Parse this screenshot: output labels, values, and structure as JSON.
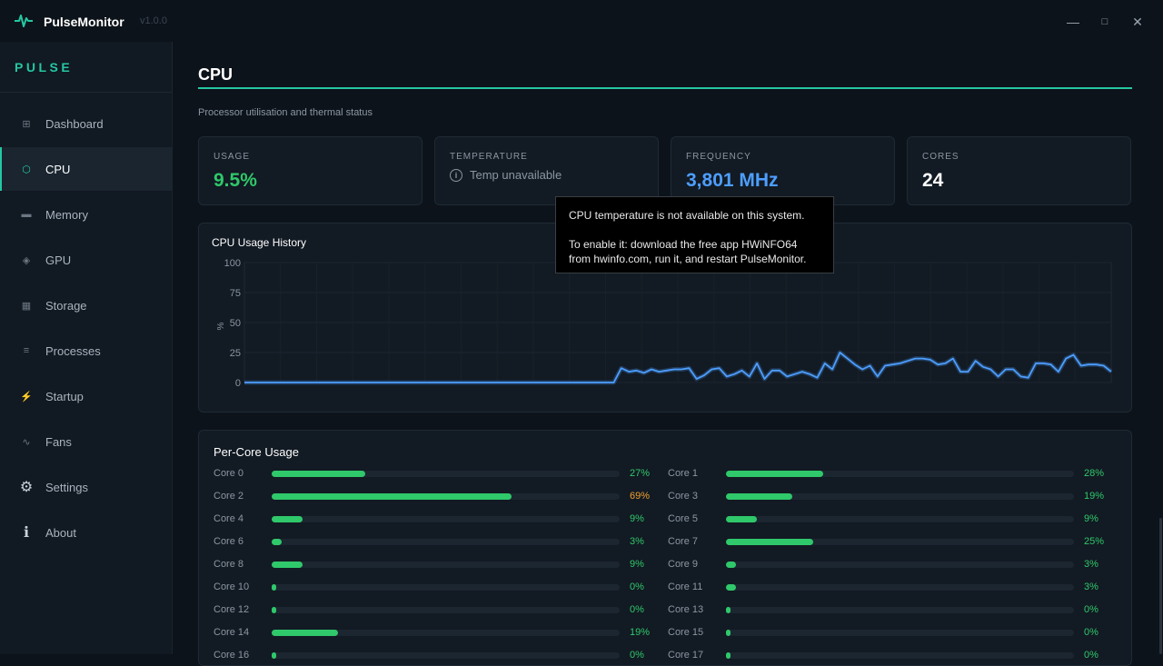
{
  "app": {
    "name": "PulseMonitor",
    "version": "v1.0.0",
    "brand": "PULSE"
  },
  "window": {
    "minimize": "—",
    "maximize": "□",
    "close": "✕"
  },
  "sidebar": {
    "items": [
      {
        "label": "Dashboard",
        "icon": "grid-icon",
        "glyph": "⊞",
        "active": false
      },
      {
        "label": "CPU",
        "icon": "cpu-icon",
        "glyph": "⬡",
        "active": true
      },
      {
        "label": "Memory",
        "icon": "memory-icon",
        "glyph": "▬",
        "active": false
      },
      {
        "label": "GPU",
        "icon": "gpu-icon",
        "glyph": "◈",
        "active": false
      },
      {
        "label": "Storage",
        "icon": "storage-icon",
        "glyph": "▦",
        "active": false
      },
      {
        "label": "Processes",
        "icon": "list-icon",
        "glyph": "≡",
        "active": false
      },
      {
        "label": "Startup",
        "icon": "bolt-icon",
        "glyph": "⚡",
        "active": false
      },
      {
        "label": "Fans",
        "icon": "fan-icon",
        "glyph": "∿",
        "active": false
      },
      {
        "label": "Settings",
        "icon": "gear-icon",
        "glyph": "⚙",
        "active": false
      },
      {
        "label": "About",
        "icon": "info-icon",
        "glyph": "ℹ",
        "active": false
      }
    ]
  },
  "page": {
    "title": "CPU",
    "subtitle": "Processor utilisation and thermal status"
  },
  "cards": [
    {
      "label": "USAGE",
      "value": "9.5%",
      "color": "#2fc86a"
    },
    {
      "label": "TEMPERATURE",
      "value": "Temp unavailable",
      "color": "#8b97a3"
    },
    {
      "label": "FREQUENCY",
      "value": "3,801 MHz",
      "color": "#4d9eff"
    },
    {
      "label": "CORES",
      "value": "24",
      "color": "#ffffff"
    }
  ],
  "history": {
    "title": "CPU Usage History",
    "ylabel": "%",
    "yticks": [
      "100",
      "75",
      "50",
      "25",
      "0"
    ],
    "chart_data": {
      "type": "line",
      "ylim": [
        0,
        100
      ],
      "color": "#4d9eff",
      "grid": true,
      "values": [
        0,
        0,
        0,
        0,
        0,
        0,
        0,
        0,
        0,
        0,
        0,
        0,
        0,
        0,
        0,
        0,
        0,
        0,
        0,
        0,
        0,
        0,
        0,
        0,
        0,
        0,
        0,
        0,
        0,
        0,
        0,
        0,
        0,
        0,
        0,
        0,
        0,
        0,
        0,
        0,
        0,
        0,
        0,
        0,
        0,
        0,
        0,
        0,
        0,
        0,
        12,
        9,
        10,
        8,
        11,
        9,
        10,
        11,
        11,
        12,
        3,
        6,
        11,
        12,
        5,
        7,
        10,
        5,
        16,
        3,
        10,
        10,
        5,
        7,
        9,
        7,
        4,
        16,
        11,
        25,
        20,
        15,
        11,
        14,
        5,
        14,
        15,
        16,
        18,
        20,
        20,
        19,
        15,
        16,
        20,
        9,
        9,
        18,
        13,
        11,
        5,
        11,
        11,
        5,
        4,
        16,
        16,
        15,
        9,
        20,
        23,
        14,
        15,
        15,
        14,
        9
      ]
    }
  },
  "percore": {
    "title": "Per-Core Usage",
    "cores": [
      {
        "label": "Core 0",
        "pct": "27%",
        "value": 27,
        "color": "#2fc86a"
      },
      {
        "label": "Core 1",
        "pct": "28%",
        "value": 28,
        "color": "#2fc86a"
      },
      {
        "label": "Core 2",
        "pct": "69%",
        "value": 69,
        "color": "#f0a030"
      },
      {
        "label": "Core 3",
        "pct": "19%",
        "value": 19,
        "color": "#2fc86a"
      },
      {
        "label": "Core 4",
        "pct": "9%",
        "value": 9,
        "color": "#2fc86a"
      },
      {
        "label": "Core 5",
        "pct": "9%",
        "value": 9,
        "color": "#2fc86a"
      },
      {
        "label": "Core 6",
        "pct": "3%",
        "value": 3,
        "color": "#2fc86a"
      },
      {
        "label": "Core 7",
        "pct": "25%",
        "value": 25,
        "color": "#2fc86a"
      },
      {
        "label": "Core 8",
        "pct": "9%",
        "value": 9,
        "color": "#2fc86a"
      },
      {
        "label": "Core 9",
        "pct": "3%",
        "value": 3,
        "color": "#2fc86a"
      },
      {
        "label": "Core 10",
        "pct": "0%",
        "value": 0,
        "color": "#2fc86a"
      },
      {
        "label": "Core 11",
        "pct": "3%",
        "value": 3,
        "color": "#2fc86a"
      },
      {
        "label": "Core 12",
        "pct": "0%",
        "value": 0,
        "color": "#2fc86a"
      },
      {
        "label": "Core 13",
        "pct": "0%",
        "value": 0,
        "color": "#2fc86a"
      },
      {
        "label": "Core 14",
        "pct": "19%",
        "value": 19,
        "color": "#2fc86a"
      },
      {
        "label": "Core 15",
        "pct": "0%",
        "value": 0,
        "color": "#2fc86a"
      },
      {
        "label": "Core 16",
        "pct": "0%",
        "value": 0,
        "color": "#2fc86a"
      },
      {
        "label": "Core 17",
        "pct": "0%",
        "value": 0,
        "color": "#2fc86a"
      }
    ]
  },
  "tooltip": {
    "line1": "CPU temperature is not available on this system.",
    "line2": "To enable it: download the free app HWiNFO64 from hwinfo.com, run it, and restart PulseMonitor."
  }
}
